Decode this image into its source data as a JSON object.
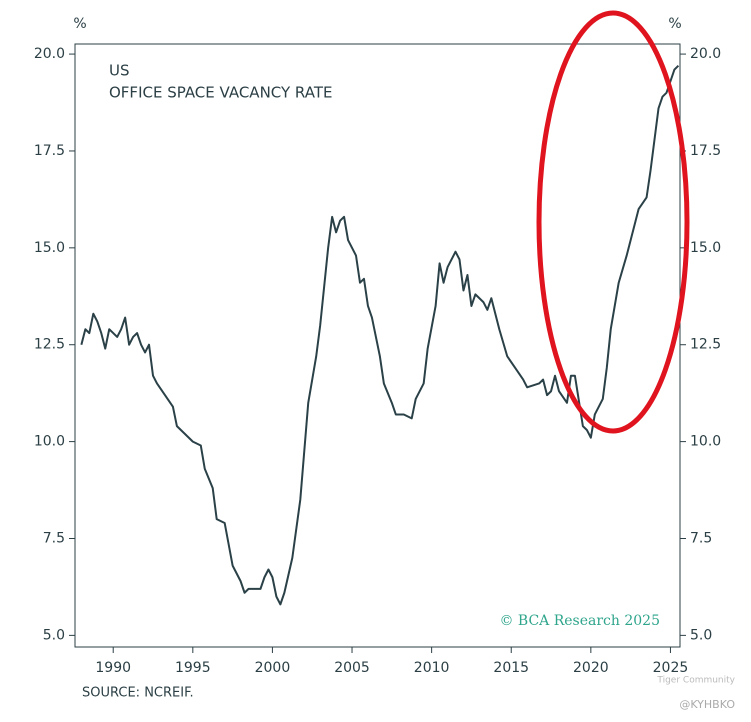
{
  "chart_data": {
    "type": "line",
    "title": "US",
    "subtitle": "OFFICE SPACE VACANCY RATE",
    "y_unit": "%",
    "y2_unit": "%",
    "source": "SOURCE: NCREIF.",
    "credit": "© BCA Research 2025",
    "watermark": [
      "Tiger Community",
      "@KYHBKO"
    ],
    "color": "#2b4148",
    "x": [
      1988.0,
      1988.25,
      1988.5,
      1988.75,
      1989.0,
      1989.25,
      1989.5,
      1989.75,
      1990.25,
      1990.5,
      1990.75,
      1991.0,
      1991.25,
      1991.5,
      1991.75,
      1992.0,
      1992.25,
      1992.5,
      1992.75,
      1993.25,
      1993.75,
      1994.0,
      1994.5,
      1995.0,
      1995.5,
      1995.75,
      1996.25,
      1996.5,
      1997.0,
      1997.5,
      1998.0,
      1998.25,
      1998.5,
      1999.0,
      1999.25,
      1999.5,
      1999.75,
      2000.0,
      2000.25,
      2000.5,
      2000.75,
      2001.25,
      2001.75,
      2002.25,
      2002.75,
      2003.0,
      2003.5,
      2003.75,
      2004.0,
      2004.25,
      2004.5,
      2004.75,
      2005.25,
      2005.5,
      2005.75,
      2006.0,
      2006.25,
      2006.75,
      2007.0,
      2007.5,
      2007.75,
      2008.25,
      2008.75,
      2009.0,
      2009.5,
      2009.75,
      2010.25,
      2010.5,
      2010.75,
      2011.0,
      2011.5,
      2011.75,
      2012.0,
      2012.25,
      2012.5,
      2012.75,
      2013.25,
      2013.5,
      2013.75,
      2014.25,
      2014.75,
      2015.25,
      2015.75,
      2016.0,
      2016.75,
      2017.0,
      2017.25,
      2017.5,
      2017.75,
      2018.0,
      2018.5,
      2018.75,
      2019.0,
      2019.5,
      2019.75,
      2020.0,
      2020.25,
      2020.75,
      2021.0,
      2021.25,
      2021.75,
      2022.25,
      2022.75,
      2023.0,
      2023.5,
      2023.75,
      2024.25,
      2024.5,
      2024.75,
      2025.25,
      2025.5
    ],
    "values": [
      12.5,
      12.9,
      12.8,
      13.3,
      13.1,
      12.8,
      12.4,
      12.9,
      12.7,
      12.9,
      13.2,
      12.5,
      12.7,
      12.8,
      12.5,
      12.3,
      12.5,
      11.7,
      11.5,
      11.2,
      10.9,
      10.4,
      10.2,
      10.0,
      9.9,
      9.3,
      8.8,
      8.0,
      7.9,
      6.8,
      6.4,
      6.1,
      6.2,
      6.2,
      6.2,
      6.5,
      6.7,
      6.5,
      6.0,
      5.8,
      6.1,
      7.0,
      8.5,
      11.0,
      12.2,
      13.0,
      15.0,
      15.8,
      15.4,
      15.7,
      15.8,
      15.2,
      14.8,
      14.1,
      14.2,
      13.5,
      13.2,
      12.2,
      11.5,
      11.0,
      10.7,
      10.7,
      10.6,
      11.1,
      11.5,
      12.4,
      13.5,
      14.6,
      14.1,
      14.5,
      14.9,
      14.7,
      13.9,
      14.3,
      13.5,
      13.8,
      13.6,
      13.4,
      13.7,
      12.9,
      12.2,
      11.9,
      11.6,
      11.4,
      11.5,
      11.6,
      11.2,
      11.3,
      11.7,
      11.3,
      11.0,
      11.7,
      11.7,
      10.4,
      10.3,
      10.1,
      10.7,
      11.1,
      11.9,
      12.9,
      14.1,
      14.8,
      15.6,
      16.0,
      16.3,
      17.0,
      18.6,
      18.9,
      19.0,
      19.6,
      19.7
    ],
    "xlim": [
      1987.6,
      2025.6
    ],
    "xticks": [
      1990,
      1995,
      2000,
      2005,
      2010,
      2015,
      2020,
      2025
    ],
    "ylim": [
      4.7,
      20.26
    ],
    "yticks": [
      {
        "value": 5,
        "label": "5.0"
      },
      {
        "value": 7.5,
        "label": "7.5"
      },
      {
        "value": 10,
        "label": "10.0"
      },
      {
        "value": 12.5,
        "label": "12.5"
      },
      {
        "value": 15,
        "label": "15.0"
      },
      {
        "value": 17.5,
        "label": "17.5"
      },
      {
        "value": 20,
        "label": "20.0"
      }
    ],
    "y2lim": [
      4.7,
      20.26
    ],
    "y2ticks": [
      {
        "value": 5,
        "label": "5.0"
      },
      {
        "value": 7.5,
        "label": "7.5"
      },
      {
        "value": 10,
        "label": "10.0"
      },
      {
        "value": 12.5,
        "label": "12.5"
      },
      {
        "value": 15,
        "label": "15.0"
      },
      {
        "value": 17.5,
        "label": "17.5"
      },
      {
        "value": 20,
        "label": "20.0"
      }
    ]
  }
}
